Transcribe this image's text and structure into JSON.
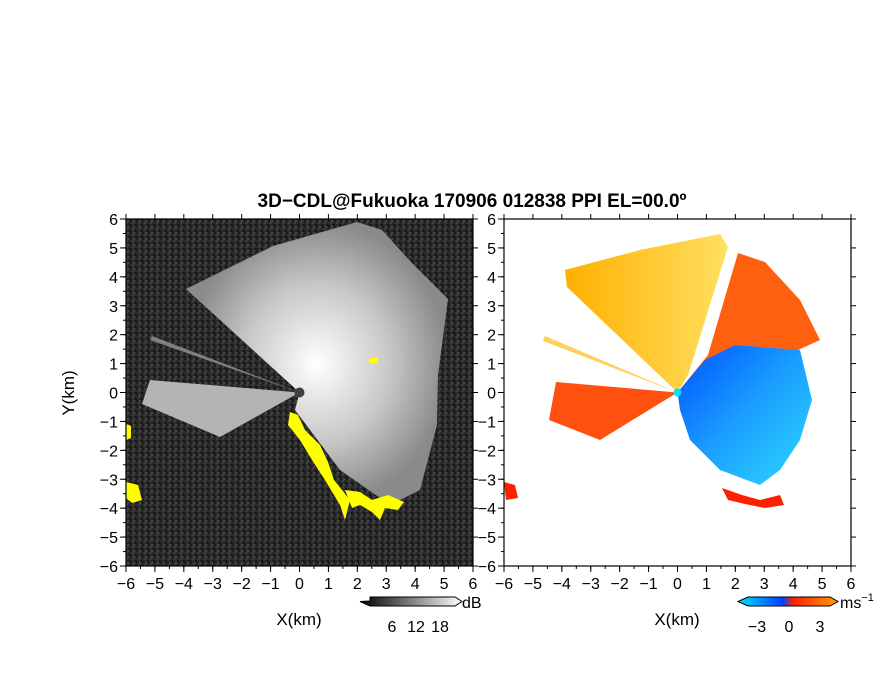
{
  "chart_data": {
    "type": "heatmap",
    "title": "3D−CDL@Fukuoka 170906 012838 PPI EL=00.0º",
    "panels": [
      {
        "name": "left",
        "xlabel": "X(km)",
        "ylabel": "Y(km)",
        "xlim": [
          -6,
          6
        ],
        "ylim": [
          -6,
          6
        ],
        "xticks": [
          "−6",
          "−5",
          "−4",
          "−3",
          "−2",
          "−1",
          "0",
          "1",
          "2",
          "3",
          "4",
          "5",
          "6"
        ],
        "yticks": [
          "−6",
          "−5",
          "−4",
          "−3",
          "−2",
          "−1",
          "0",
          "1",
          "2",
          "3",
          "4",
          "5",
          "6"
        ],
        "colorbar": {
          "unit": "dB",
          "ticks": [
            "6",
            "12",
            "18"
          ],
          "colors": [
            "#000000",
            "#ffffff"
          ]
        }
      },
      {
        "name": "right",
        "xlabel": "X(km)",
        "ylabel": "",
        "xlim": [
          -6,
          6
        ],
        "ylim": [
          -6,
          6
        ],
        "xticks": [
          "−6",
          "−5",
          "−4",
          "−3",
          "−2",
          "−1",
          "0",
          "1",
          "2",
          "3",
          "4",
          "5",
          "6"
        ],
        "yticks": [
          "−6",
          "−5",
          "−4",
          "−3",
          "−2",
          "−1",
          "0",
          "1",
          "2",
          "3",
          "4",
          "5",
          "6"
        ],
        "colorbar": {
          "unit": "ms",
          "unit_sup": "−1",
          "ticks": [
            "−3",
            "0",
            "3"
          ],
          "colors": [
            "#00e0ff",
            "#0040ff",
            "#ff2000",
            "#ffa000"
          ]
        }
      }
    ]
  }
}
